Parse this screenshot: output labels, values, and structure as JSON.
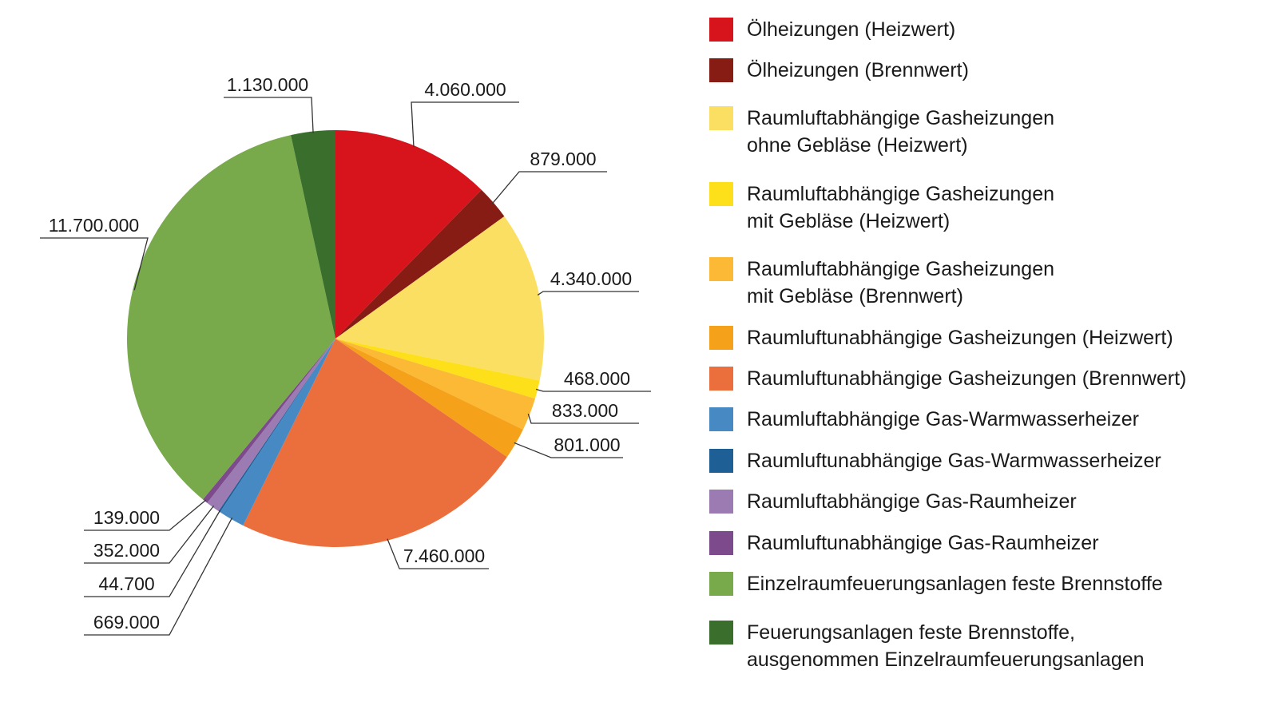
{
  "chart_data": {
    "type": "pie",
    "categories": [
      "Ölheizungen (Heizwert)",
      "Ölheizungen (Brennwert)",
      "Raumluftabhängige Gasheizungen\nohne Gebläse (Heizwert)",
      "Raumluftabhängige Gasheizungen\nmit Gebläse (Heizwert)",
      "Raumluftabhängige Gasheizungen\nmit Gebläse (Brennwert)",
      "Raumluftunabhängige Gasheizungen (Heizwert)",
      "Raumluftunabhängige Gasheizungen (Brennwert)",
      "Raumluftabhängige Gas-Warmwasserheizer",
      "Raumluftunabhängige Gas-Warmwasserheizer",
      "Raumluftabhängige Gas-Raumheizer",
      "Raumluftunabhängige Gas-Raumheizer",
      "Einzelraumfeuerungsanlagen feste Brennstoffe",
      "Feuerungsanlagen feste Brennstoffe,\nausgenommen Einzelraumfeuerungsanlagen"
    ],
    "values": [
      4060000,
      879000,
      4340000,
      468000,
      833000,
      801000,
      7460000,
      669000,
      44700,
      352000,
      139000,
      11700000,
      1130000
    ],
    "value_labels": [
      "4.060.000",
      "879.000",
      "4.340.000",
      "468.000",
      "833.000",
      "801.000",
      "7.460.000",
      "669.000",
      "44.700",
      "352.000",
      "139.000",
      "11.700.000",
      "1.130.000"
    ],
    "colors": [
      "#d7141c",
      "#861c14",
      "#fbdf62",
      "#fde01a",
      "#fbb935",
      "#f6a11a",
      "#eb6e3d",
      "#478ac3",
      "#1e5f96",
      "#9c7bb3",
      "#7d4a8b",
      "#78a94a",
      "#3a6e2c"
    ],
    "legend": "right"
  }
}
